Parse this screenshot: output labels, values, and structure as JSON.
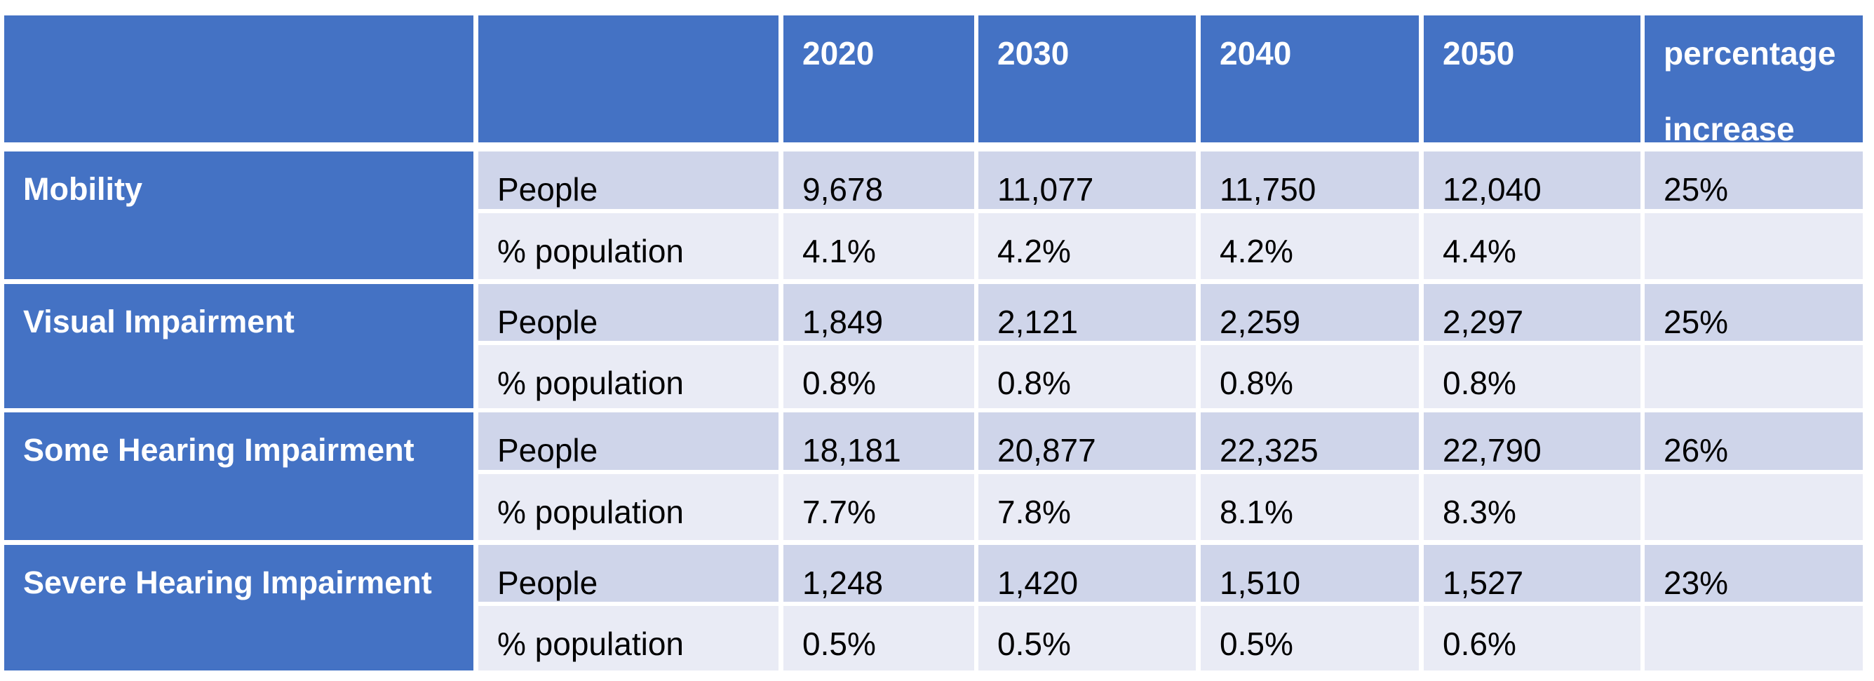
{
  "table": {
    "headers": [
      "",
      "",
      "2020",
      "2030",
      "2040",
      "2050",
      "percentage increase"
    ],
    "groups": [
      {
        "category": "Mobility",
        "rows": [
          {
            "label": "People",
            "values": [
              "9,678",
              "11,077",
              "11,750",
              "12,040"
            ],
            "increase": "25%"
          },
          {
            "label": "% population",
            "values": [
              "4.1%",
              "4.2%",
              "4.2%",
              "4.4%"
            ],
            "increase": ""
          }
        ]
      },
      {
        "category": "Visual Impairment",
        "rows": [
          {
            "label": "People",
            "values": [
              "1,849",
              "2,121",
              "2,259",
              "2,297"
            ],
            "increase": "25%"
          },
          {
            "label": "% population",
            "values": [
              "0.8%",
              "0.8%",
              "0.8%",
              "0.8%"
            ],
            "increase": ""
          }
        ]
      },
      {
        "category": "Some Hearing Impairment",
        "rows": [
          {
            "label": "People",
            "values": [
              "18,181",
              "20,877",
              "22,325",
              "22,790"
            ],
            "increase": "26%"
          },
          {
            "label": "% population",
            "values": [
              "7.7%",
              "7.8%",
              "8.1%",
              "8.3%"
            ],
            "increase": ""
          }
        ]
      },
      {
        "category": "Severe Hearing Impairment",
        "rows": [
          {
            "label": "People",
            "values": [
              "1,248",
              "1,420",
              "1,510",
              "1,527"
            ],
            "increase": "23%"
          },
          {
            "label": "% population",
            "values": [
              "0.5%",
              "0.5%",
              "0.5%",
              "0.6%"
            ],
            "increase": ""
          }
        ]
      }
    ],
    "colors": {
      "header": "#4472c4",
      "row_dark": "#cfd5ea",
      "row_light": "#e9ebf5",
      "header_text": "#ffffff"
    }
  },
  "chart_data": {
    "type": "table",
    "columns": [
      "",
      "",
      "2020",
      "2030",
      "2040",
      "2050",
      "percentage increase"
    ],
    "rows": [
      [
        "Mobility",
        "People",
        "9,678",
        "11,077",
        "11,750",
        "12,040",
        "25%"
      ],
      [
        "",
        "% population",
        "4.1%",
        "4.2%",
        "4.2%",
        "4.4%",
        ""
      ],
      [
        "Visual Impairment",
        "People",
        "1,849",
        "2,121",
        "2,259",
        "2,297",
        "25%"
      ],
      [
        "",
        "% population",
        "0.8%",
        "0.8%",
        "0.8%",
        "0.8%",
        ""
      ],
      [
        "Some Hearing Impairment",
        "People",
        "18,181",
        "20,877",
        "22,325",
        "22,790",
        "26%"
      ],
      [
        "",
        "% population",
        "7.7%",
        "7.8%",
        "8.1%",
        "8.3%",
        ""
      ],
      [
        "Severe Hearing Impairment",
        "People",
        "1,248",
        "1,420",
        "1,510",
        "1,527",
        "23%"
      ],
      [
        "",
        "% population",
        "0.5%",
        "0.5%",
        "0.5%",
        "0.6%",
        ""
      ]
    ]
  }
}
